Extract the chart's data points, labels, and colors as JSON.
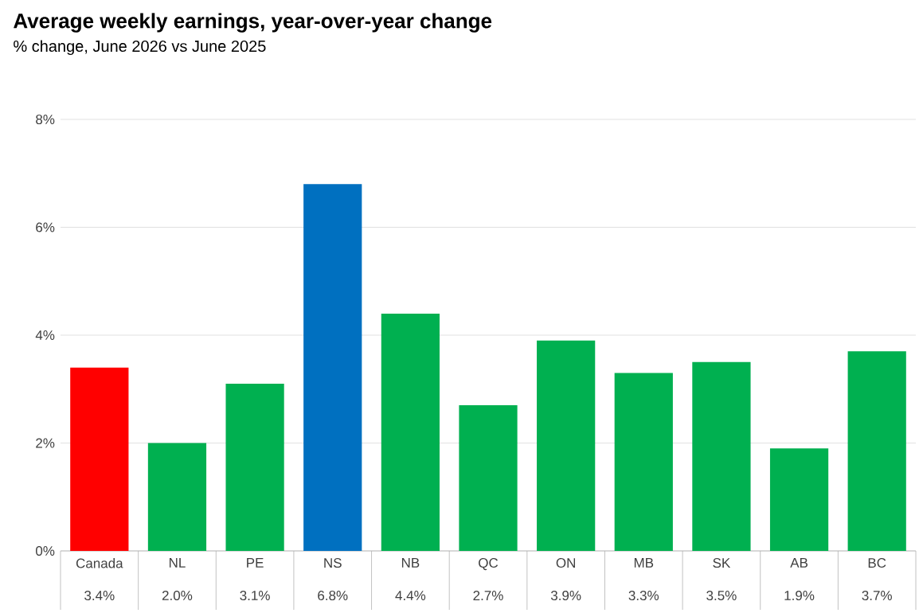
{
  "chart_data": {
    "type": "bar",
    "title": "Average weekly earnings, year-over-year change",
    "subtitle": "% change, June 2026 vs June 2025",
    "categories": [
      "Canada",
      "NL",
      "PE",
      "NS",
      "NB",
      "QC",
      "ON",
      "MB",
      "SK",
      "AB",
      "BC"
    ],
    "values": [
      3.4,
      2.0,
      3.1,
      6.8,
      4.4,
      2.7,
      3.9,
      3.3,
      3.5,
      1.9,
      3.7
    ],
    "colors": [
      "#ff0000",
      "#00b050",
      "#00b050",
      "#0070c0",
      "#00b050",
      "#00b050",
      "#00b050",
      "#00b050",
      "#00b050",
      "#00b050",
      "#00b050"
    ],
    "value_labels": [
      "3.4%",
      "2.0%",
      "3.1%",
      "6.8%",
      "4.4%",
      "2.7%",
      "3.9%",
      "3.3%",
      "3.5%",
      "1.9%",
      "3.7%"
    ],
    "ylim": [
      0,
      8
    ],
    "yticks": [
      {
        "value": 0,
        "label": "0%"
      },
      {
        "value": 2,
        "label": "2%"
      },
      {
        "value": 4,
        "label": "4%"
      },
      {
        "value": 6,
        "label": "6%"
      },
      {
        "value": 8,
        "label": "8%"
      }
    ],
    "grid": "y"
  }
}
